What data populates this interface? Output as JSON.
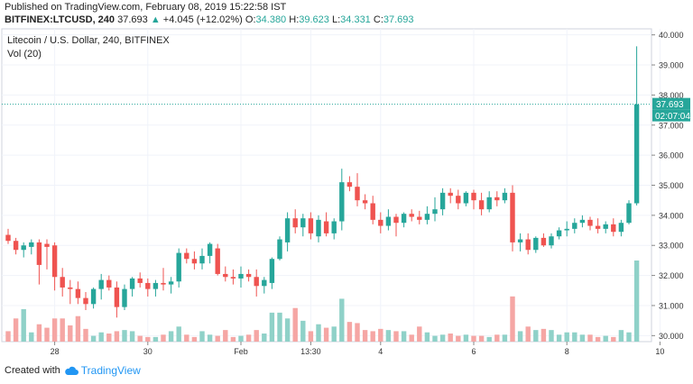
{
  "header": {
    "published": "Published on TradingView.com, February 08, 2019 15:22:58 IST",
    "symbol": "BITFINEX:LTCUSD, 240",
    "last": "37.693",
    "change": "+4.045 (+12.02%)",
    "o_label": "O:",
    "o": "34.380",
    "h_label": "H:",
    "h": "39.623",
    "l_label": "L:",
    "l": "34.331",
    "c_label": "C:",
    "c": "37.693"
  },
  "footer": {
    "created_with": "Created with",
    "brand": "TradingView"
  },
  "colors": {
    "up": "#26a69a",
    "down": "#ef5350",
    "up_vol": "#8fd1c8",
    "down_vol": "#f5a6a4",
    "grid": "#f0f3fa"
  },
  "chart_data": {
    "type": "candlestick",
    "title": "Litecoin / U.S. Dollar, 240, BITFINEX",
    "volume_label": "Vol (20)",
    "ylim": [
      29.8,
      40.2
    ],
    "y_ticks": [
      "30.000",
      "31.000",
      "32.000",
      "33.000",
      "34.000",
      "35.000",
      "36.000",
      "37.000",
      "38.000",
      "39.000",
      "40.000"
    ],
    "x_ticks": [
      {
        "label": "28",
        "index": 6
      },
      {
        "label": "30",
        "index": 18
      },
      {
        "label": "Feb",
        "index": 30
      },
      {
        "label": "13:30",
        "index": 39
      },
      {
        "label": "4",
        "index": 48
      },
      {
        "label": "6",
        "index": 60
      },
      {
        "label": "8",
        "index": 72
      },
      {
        "label": "10",
        "index": 84
      }
    ],
    "last_price": "37.693",
    "countdown": "02:07:04",
    "candles": [
      [
        33.35,
        33.55,
        33.05,
        33.15,
        0.9
      ],
      [
        33.15,
        33.25,
        32.7,
        32.85,
        2.0
      ],
      [
        32.85,
        33.1,
        32.6,
        33.0,
        2.8
      ],
      [
        32.95,
        33.2,
        32.7,
        33.1,
        0.8
      ],
      [
        33.1,
        33.2,
        31.7,
        32.35,
        1.5
      ],
      [
        33.05,
        33.2,
        32.2,
        32.95,
        1.2
      ],
      [
        33.0,
        33.1,
        31.5,
        31.95,
        2.0
      ],
      [
        31.95,
        32.25,
        31.3,
        31.6,
        2.0
      ],
      [
        31.6,
        31.85,
        31.05,
        31.55,
        1.4
      ],
      [
        31.55,
        31.8,
        31.05,
        31.25,
        2.2
      ],
      [
        31.25,
        31.45,
        30.85,
        31.05,
        1.1
      ],
      [
        31.05,
        31.6,
        30.9,
        31.55,
        0.5
      ],
      [
        31.55,
        32.05,
        31.2,
        31.85,
        0.8
      ],
      [
        31.85,
        32.0,
        31.5,
        31.6,
        0.7
      ],
      [
        31.6,
        31.8,
        30.6,
        30.95,
        0.9
      ],
      [
        30.95,
        31.7,
        30.85,
        31.55,
        1.0
      ],
      [
        31.55,
        31.95,
        31.3,
        31.9,
        0.9
      ],
      [
        31.9,
        32.1,
        31.6,
        31.75,
        0.5
      ],
      [
        31.75,
        31.9,
        31.3,
        31.55,
        0.4
      ],
      [
        31.55,
        31.85,
        31.3,
        31.75,
        0.4
      ],
      [
        31.75,
        32.25,
        31.5,
        31.7,
        0.6
      ],
      [
        31.7,
        31.95,
        31.4,
        31.8,
        0.9
      ],
      [
        31.8,
        32.9,
        31.6,
        32.75,
        1.3
      ],
      [
        32.75,
        32.9,
        32.4,
        32.55,
        0.6
      ],
      [
        32.55,
        32.8,
        32.2,
        32.4,
        0.4
      ],
      [
        32.4,
        32.9,
        32.2,
        32.65,
        0.9
      ],
      [
        32.65,
        33.1,
        32.4,
        33.05,
        0.6
      ],
      [
        32.9,
        33.05,
        32.0,
        32.05,
        0.5
      ],
      [
        32.05,
        32.3,
        31.8,
        31.95,
        1.0
      ],
      [
        31.95,
        32.2,
        31.7,
        31.9,
        0.4
      ],
      [
        31.9,
        32.3,
        31.6,
        32.05,
        0.5
      ],
      [
        32.05,
        32.2,
        31.8,
        31.95,
        0.6
      ],
      [
        31.95,
        32.2,
        31.3,
        31.65,
        1.0
      ],
      [
        31.65,
        31.95,
        31.4,
        31.85,
        0.7
      ],
      [
        31.75,
        32.6,
        31.55,
        32.55,
        2.5
      ],
      [
        32.55,
        33.3,
        32.5,
        33.2,
        2.5
      ],
      [
        33.1,
        34.1,
        32.8,
        33.9,
        2.0
      ],
      [
        33.9,
        34.2,
        33.4,
        33.6,
        2.9
      ],
      [
        33.6,
        34.05,
        33.3,
        33.9,
        1.8
      ],
      [
        33.9,
        34.1,
        33.2,
        33.4,
        0.9
      ],
      [
        33.3,
        34.0,
        33.1,
        33.85,
        1.5
      ],
      [
        33.8,
        34.1,
        33.3,
        33.4,
        1.2
      ],
      [
        33.4,
        33.9,
        33.2,
        33.8,
        1.3
      ],
      [
        33.8,
        35.55,
        33.5,
        35.1,
        3.7
      ],
      [
        35.1,
        35.3,
        34.8,
        34.95,
        1.7
      ],
      [
        34.95,
        35.4,
        34.3,
        34.5,
        1.6
      ],
      [
        34.5,
        34.7,
        34.2,
        34.4,
        1.0
      ],
      [
        34.4,
        34.65,
        33.7,
        33.85,
        0.9
      ],
      [
        33.85,
        34.1,
        33.4,
        33.65,
        1.1
      ],
      [
        33.65,
        34.2,
        33.5,
        33.95,
        1.0
      ],
      [
        33.95,
        34.05,
        33.3,
        33.75,
        0.9
      ],
      [
        33.75,
        34.1,
        33.6,
        34.05,
        0.9
      ],
      [
        34.05,
        34.2,
        33.8,
        33.95,
        0.6
      ],
      [
        33.95,
        34.15,
        33.7,
        33.85,
        1.3
      ],
      [
        33.85,
        34.3,
        33.7,
        34.05,
        0.8
      ],
      [
        34.05,
        34.6,
        33.8,
        34.2,
        0.5
      ],
      [
        34.2,
        34.9,
        34.0,
        34.75,
        0.6
      ],
      [
        34.75,
        34.9,
        34.4,
        34.65,
        0.7
      ],
      [
        34.65,
        34.85,
        34.2,
        34.4,
        0.5
      ],
      [
        34.4,
        34.8,
        34.3,
        34.75,
        0.6
      ],
      [
        34.75,
        34.85,
        34.2,
        34.5,
        0.5
      ],
      [
        34.5,
        34.75,
        34.0,
        34.2,
        0.5
      ],
      [
        34.2,
        34.8,
        34.1,
        34.6,
        0.4
      ],
      [
        34.6,
        34.8,
        34.3,
        34.5,
        0.6
      ],
      [
        34.5,
        34.9,
        34.4,
        34.75,
        0.6
      ],
      [
        34.75,
        35.0,
        32.8,
        33.1,
        3.9
      ],
      [
        33.1,
        33.4,
        32.8,
        33.2,
        0.9
      ],
      [
        33.2,
        33.4,
        32.7,
        32.85,
        1.3
      ],
      [
        32.85,
        33.3,
        32.75,
        33.25,
        1.0
      ],
      [
        33.25,
        33.4,
        32.95,
        33.0,
        1.1
      ],
      [
        33.0,
        33.4,
        32.9,
        33.3,
        1.0
      ],
      [
        33.3,
        33.6,
        33.2,
        33.5,
        0.6
      ],
      [
        33.5,
        33.8,
        33.3,
        33.55,
        0.8
      ],
      [
        33.55,
        33.9,
        33.4,
        33.75,
        0.8
      ],
      [
        33.75,
        34.0,
        33.6,
        33.85,
        0.6
      ],
      [
        33.85,
        33.95,
        33.5,
        33.65,
        0.6
      ],
      [
        33.65,
        33.9,
        33.4,
        33.55,
        0.4
      ],
      [
        33.55,
        33.8,
        33.4,
        33.7,
        0.5
      ],
      [
        33.7,
        33.9,
        33.3,
        33.45,
        0.4
      ],
      [
        33.45,
        33.85,
        33.3,
        33.75,
        1.0
      ],
      [
        33.75,
        34.5,
        33.7,
        34.4,
        0.8
      ],
      [
        34.4,
        39.62,
        34.33,
        37.69,
        7.0
      ]
    ]
  }
}
